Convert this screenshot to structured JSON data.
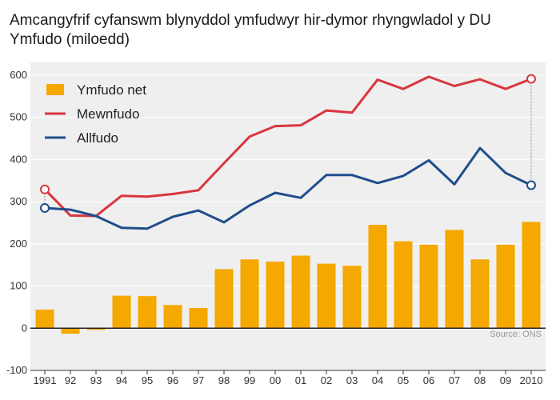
{
  "title": "Amcangyfrif cyfanswm blynyddol ymfudwyr hir-dymor rhyngwladol y DU",
  "subtitle": "Ymfudo (miloedd)",
  "source": "Source: ONS",
  "chart_data": {
    "type": "bar",
    "categories": [
      "1991",
      "92",
      "93",
      "94",
      "95",
      "96",
      "97",
      "98",
      "99",
      "00",
      "01",
      "02",
      "03",
      "04",
      "05",
      "06",
      "07",
      "08",
      "09",
      "2010"
    ],
    "ylim": [
      -100,
      630
    ],
    "yticks": [
      -100,
      0,
      100,
      200,
      300,
      400,
      500,
      600
    ],
    "grid": true,
    "legend_position": "top-left",
    "series": [
      {
        "name": "Ymfudo net",
        "kind": "bar",
        "color": "#f5a800",
        "values": [
          44,
          -13,
          -4,
          77,
          76,
          55,
          48,
          140,
          163,
          158,
          172,
          153,
          148,
          245,
          206,
          198,
          233,
          163,
          198,
          252
        ]
      },
      {
        "name": "Mewnfudo",
        "kind": "line",
        "color": "#d9363e",
        "values": [
          329,
          267,
          266,
          314,
          312,
          318,
          327,
          391,
          454,
          479,
          481,
          516,
          511,
          589,
          567,
          596,
          574,
          590,
          567,
          591
        ]
      },
      {
        "name": "Allfudo",
        "kind": "line",
        "color": "#1f4e8c",
        "values": [
          285,
          281,
          266,
          238,
          236,
          264,
          279,
          251,
          291,
          321,
          309,
          363,
          363,
          344,
          361,
          398,
          341,
          427,
          368,
          339
        ]
      }
    ]
  }
}
